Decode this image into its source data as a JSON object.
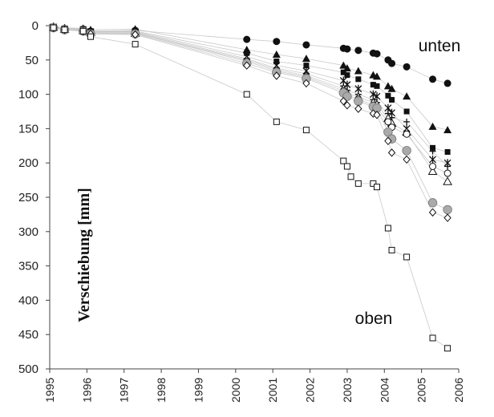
{
  "chart_data": {
    "type": "scatter",
    "title": "",
    "xlabel": "",
    "ylabel": "Verschiebung [mm]",
    "xlim": [
      1995,
      2006
    ],
    "ylim": [
      0,
      500
    ],
    "y_inverted": true,
    "grid": false,
    "legend": "none",
    "x_ticks": [
      "1995",
      "1996",
      "1997",
      "1998",
      "1999",
      "2000",
      "2001",
      "2002",
      "2003",
      "2004",
      "2005",
      "2006"
    ],
    "y_ticks": [
      "0",
      "50",
      "100",
      "150",
      "200",
      "250",
      "300",
      "350",
      "400",
      "450",
      "500"
    ],
    "annotations": [
      {
        "text": "unten",
        "near_series": "filled-circle"
      },
      {
        "text": "oben",
        "near_series": "open-square"
      }
    ],
    "series": [
      {
        "marker": "filled-circle",
        "color": "#111111",
        "points": [
          [
            1995.1,
            2
          ],
          [
            1995.4,
            4
          ],
          [
            1995.9,
            5
          ],
          [
            1996.1,
            8
          ],
          [
            1997.3,
            7
          ],
          [
            2000.3,
            20
          ],
          [
            2001.1,
            23
          ],
          [
            2001.9,
            28
          ],
          [
            2002.9,
            33
          ],
          [
            2003.0,
            34
          ],
          [
            2003.3,
            36
          ],
          [
            2003.7,
            40
          ],
          [
            2003.8,
            41
          ],
          [
            2004.1,
            50
          ],
          [
            2004.2,
            55
          ],
          [
            2004.6,
            60
          ],
          [
            2005.3,
            78
          ],
          [
            2005.7,
            84
          ]
        ]
      },
      {
        "marker": "filled-triangle",
        "color": "#111111",
        "points": [
          [
            1995.1,
            1
          ],
          [
            1995.4,
            3
          ],
          [
            1995.9,
            4
          ],
          [
            1996.1,
            6
          ],
          [
            1997.3,
            5
          ],
          [
            2000.3,
            35
          ],
          [
            2001.1,
            42
          ],
          [
            2001.9,
            48
          ],
          [
            2002.9,
            58
          ],
          [
            2003.0,
            62
          ],
          [
            2003.3,
            66
          ],
          [
            2003.7,
            72
          ],
          [
            2003.8,
            74
          ],
          [
            2004.1,
            88
          ],
          [
            2004.2,
            92
          ],
          [
            2004.6,
            103
          ],
          [
            2005.3,
            147
          ],
          [
            2005.7,
            152
          ]
        ]
      },
      {
        "marker": "filled-square",
        "color": "#111111",
        "points": [
          [
            1995.1,
            2
          ],
          [
            1995.4,
            4
          ],
          [
            1995.9,
            5
          ],
          [
            1996.1,
            8
          ],
          [
            1997.3,
            8
          ],
          [
            2000.3,
            40
          ],
          [
            2001.1,
            52
          ],
          [
            2001.9,
            58
          ],
          [
            2002.9,
            68
          ],
          [
            2003.0,
            72
          ],
          [
            2003.3,
            78
          ],
          [
            2003.7,
            86
          ],
          [
            2003.8,
            88
          ],
          [
            2004.1,
            102
          ],
          [
            2004.2,
            108
          ],
          [
            2004.6,
            125
          ],
          [
            2005.3,
            178
          ],
          [
            2005.7,
            184
          ]
        ]
      },
      {
        "marker": "asterisk",
        "color": "#111111",
        "points": [
          [
            1995.1,
            2
          ],
          [
            1995.4,
            5
          ],
          [
            1995.9,
            6
          ],
          [
            1996.1,
            9
          ],
          [
            1997.3,
            9
          ],
          [
            2000.3,
            45
          ],
          [
            2001.1,
            58
          ],
          [
            2001.9,
            66
          ],
          [
            2002.9,
            80
          ],
          [
            2003.0,
            86
          ],
          [
            2003.3,
            92
          ],
          [
            2003.7,
            100
          ],
          [
            2003.8,
            103
          ],
          [
            2004.1,
            120
          ],
          [
            2004.2,
            127
          ],
          [
            2004.6,
            150
          ],
          [
            2005.3,
            195
          ],
          [
            2005.7,
            200
          ]
        ]
      },
      {
        "marker": "cross",
        "color": "#111111",
        "points": [
          [
            1995.1,
            2
          ],
          [
            1995.4,
            5
          ],
          [
            1995.9,
            6
          ],
          [
            1996.1,
            10
          ],
          [
            1997.3,
            10
          ],
          [
            2000.3,
            48
          ],
          [
            2001.1,
            62
          ],
          [
            2001.9,
            70
          ],
          [
            2002.9,
            88
          ],
          [
            2003.0,
            94
          ],
          [
            2003.3,
            100
          ],
          [
            2003.7,
            108
          ],
          [
            2003.8,
            112
          ],
          [
            2004.1,
            128
          ],
          [
            2004.2,
            134
          ],
          [
            2004.6,
            140
          ],
          [
            2005.3,
            183
          ],
          [
            2005.7,
            205
          ]
        ]
      },
      {
        "marker": "open-triangle",
        "color": "#111111",
        "points": [
          [
            1995.1,
            2
          ],
          [
            1995.4,
            5
          ],
          [
            1995.9,
            7
          ],
          [
            1996.1,
            10
          ],
          [
            1997.3,
            11
          ],
          [
            2000.3,
            50
          ],
          [
            2001.1,
            64
          ],
          [
            2001.9,
            73
          ],
          [
            2002.9,
            92
          ],
          [
            2003.0,
            98
          ],
          [
            2003.3,
            104
          ],
          [
            2003.7,
            112
          ],
          [
            2003.8,
            115
          ],
          [
            2004.1,
            135
          ],
          [
            2004.2,
            142
          ],
          [
            2004.6,
            155
          ],
          [
            2005.3,
            212
          ],
          [
            2005.7,
            227
          ]
        ]
      },
      {
        "marker": "open-circle",
        "color": "#111111",
        "points": [
          [
            1995.1,
            2
          ],
          [
            1995.4,
            5
          ],
          [
            1995.9,
            7
          ],
          [
            1996.1,
            11
          ],
          [
            1997.3,
            11
          ],
          [
            2000.3,
            52
          ],
          [
            2001.1,
            66
          ],
          [
            2001.9,
            75
          ],
          [
            2002.9,
            95
          ],
          [
            2003.0,
            101
          ],
          [
            2003.3,
            107
          ],
          [
            2003.7,
            116
          ],
          [
            2003.8,
            120
          ],
          [
            2004.1,
            140
          ],
          [
            2004.2,
            148
          ],
          [
            2004.6,
            158
          ],
          [
            2005.3,
            205
          ],
          [
            2005.7,
            215
          ]
        ]
      },
      {
        "marker": "grey-circle",
        "color": "#aaaaaa",
        "points": [
          [
            1995.1,
            3
          ],
          [
            1995.4,
            6
          ],
          [
            1995.9,
            8
          ],
          [
            1996.1,
            12
          ],
          [
            1997.3,
            12
          ],
          [
            2000.3,
            55
          ],
          [
            2001.1,
            68
          ],
          [
            2001.9,
            77
          ],
          [
            2002.9,
            98
          ],
          [
            2003.0,
            103
          ],
          [
            2003.3,
            110
          ],
          [
            2003.7,
            118
          ],
          [
            2003.8,
            120
          ],
          [
            2004.1,
            155
          ],
          [
            2004.2,
            165
          ],
          [
            2004.6,
            182
          ],
          [
            2005.3,
            258
          ],
          [
            2005.7,
            268
          ]
        ]
      },
      {
        "marker": "open-diamond",
        "color": "#111111",
        "points": [
          [
            1995.1,
            3
          ],
          [
            1995.4,
            6
          ],
          [
            1995.9,
            8
          ],
          [
            1996.1,
            12
          ],
          [
            1997.3,
            13
          ],
          [
            2000.3,
            58
          ],
          [
            2001.1,
            73
          ],
          [
            2001.9,
            84
          ],
          [
            2002.9,
            110
          ],
          [
            2003.0,
            116
          ],
          [
            2003.3,
            121
          ],
          [
            2003.7,
            128
          ],
          [
            2003.8,
            130
          ],
          [
            2004.1,
            168
          ],
          [
            2004.2,
            185
          ],
          [
            2004.6,
            195
          ],
          [
            2005.3,
            272
          ],
          [
            2005.7,
            280
          ]
        ]
      },
      {
        "marker": "open-square",
        "color": "#111111",
        "points": [
          [
            1995.1,
            3
          ],
          [
            1995.4,
            6
          ],
          [
            1995.9,
            8
          ],
          [
            1996.1,
            16
          ],
          [
            1997.3,
            27
          ],
          [
            2000.3,
            100
          ],
          [
            2001.1,
            140
          ],
          [
            2001.9,
            152
          ],
          [
            2002.9,
            197
          ],
          [
            2003.0,
            205
          ],
          [
            2003.1,
            220
          ],
          [
            2003.3,
            230
          ],
          [
            2003.7,
            230
          ],
          [
            2003.8,
            235
          ],
          [
            2004.1,
            295
          ],
          [
            2004.2,
            327
          ],
          [
            2004.6,
            337
          ],
          [
            2005.3,
            455
          ],
          [
            2005.7,
            470
          ]
        ]
      }
    ]
  }
}
